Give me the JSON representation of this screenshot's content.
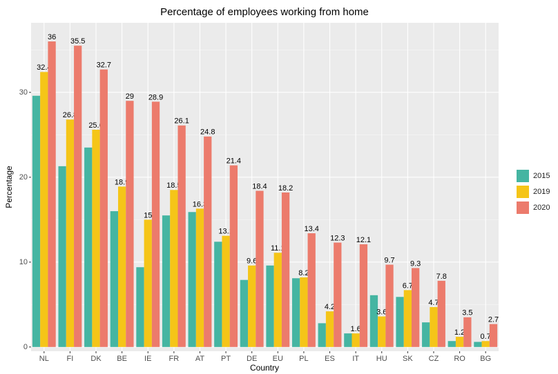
{
  "chart_data": {
    "type": "bar",
    "title": "Percentage of employees working from home",
    "x_label": "Country",
    "y_label": "Percentage",
    "categories": [
      "NL",
      "FI",
      "DK",
      "BE",
      "IE",
      "FR",
      "AT",
      "PT",
      "DE",
      "EU",
      "PL",
      "ES",
      "IT",
      "HU",
      "SK",
      "CZ",
      "RO",
      "BG"
    ],
    "series": [
      {
        "name": "2015",
        "color": "#45b5a2",
        "show_labels": false,
        "values": [
          29.6,
          21.3,
          23.5,
          16.0,
          9.4,
          15.5,
          15.9,
          12.4,
          7.9,
          9.6,
          8.1,
          2.8,
          1.6,
          6.1,
          5.9,
          2.9,
          0.7,
          0.6
        ]
      },
      {
        "name": "2019",
        "color": "#f5c518",
        "show_labels": true,
        "values": [
          32.4,
          26.8,
          25.6,
          18.9,
          15,
          18.5,
          16.3,
          13.1,
          9.6,
          11.1,
          8.2,
          4.2,
          1.6,
          3.6,
          6.7,
          4.7,
          1.2,
          0.7
        ]
      },
      {
        "name": "2020",
        "color": "#ec7b6c",
        "show_labels": true,
        "values": [
          36,
          35.5,
          32.7,
          29,
          28.9,
          26.1,
          24.8,
          21.4,
          18.4,
          18.2,
          13.4,
          12.3,
          12.1,
          9.7,
          9.3,
          7.8,
          3.5,
          2.7
        ]
      }
    ],
    "ylim": [
      -0.5,
      38.2
    ],
    "yticks": [
      0,
      10,
      20,
      30
    ],
    "minor_yticks": [
      5,
      15,
      25,
      35
    ],
    "grid": true,
    "legend": "right"
  }
}
